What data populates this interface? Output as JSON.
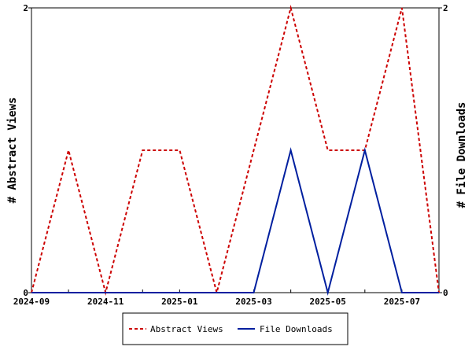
{
  "chart_data": {
    "type": "line",
    "x": [
      "2024-09",
      "2024-10",
      "2024-11",
      "2024-12",
      "2025-01",
      "2025-02",
      "2025-03",
      "2025-04",
      "2025-05",
      "2025-06",
      "2025-07",
      "2025-08"
    ],
    "x_tick_labels": [
      "2024-09",
      "2024-11",
      "2025-01",
      "2025-03",
      "2025-05",
      "2025-07"
    ],
    "ylabel_left": "# Abstract Views",
    "ylabel_right": "# File Downloads",
    "ylim_left": [
      0,
      2
    ],
    "ylim_right": [
      0,
      2
    ],
    "y_tick_labels_left": [
      "0",
      "2"
    ],
    "y_tick_labels_right": [
      "0",
      "2"
    ],
    "grid": false,
    "legend_position": "bottom",
    "series": [
      {
        "name": "Abstract Views",
        "axis": "left",
        "color": "#cc0000",
        "style": "dashed",
        "values": [
          0,
          1,
          0,
          1,
          1,
          0,
          1,
          2,
          1,
          1,
          2,
          0
        ]
      },
      {
        "name": "File Downloads",
        "axis": "right",
        "color": "#001f9f",
        "style": "solid",
        "values": [
          0,
          0,
          0,
          0,
          0,
          0,
          0,
          1,
          0,
          1,
          0,
          0
        ]
      }
    ]
  }
}
